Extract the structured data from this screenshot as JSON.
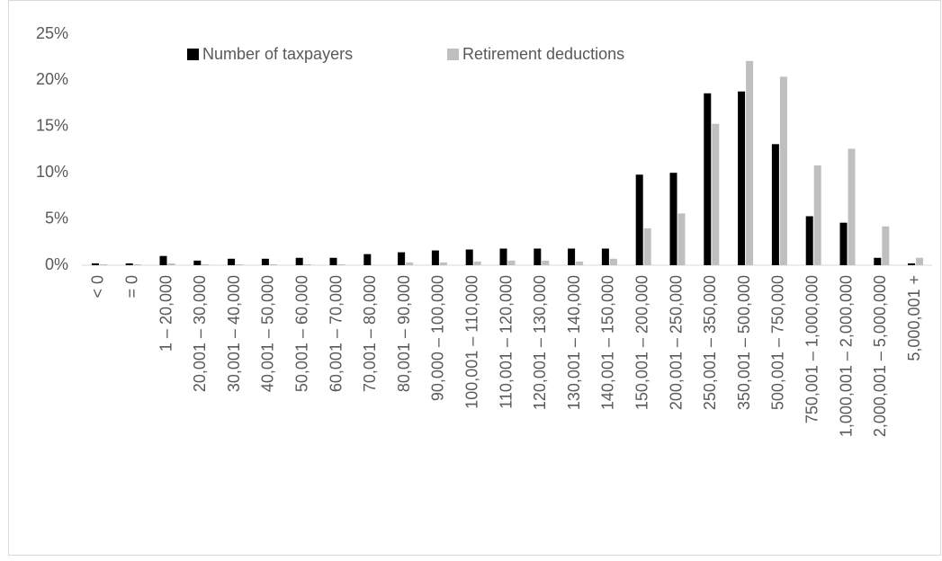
{
  "chart_data": {
    "type": "bar",
    "categories": [
      "< 0",
      "= 0",
      "1 – 20,000",
      "20,001 – 30,000",
      "30,001 – 40,000",
      "40,001 – 50,000",
      "50,001 – 60,000",
      "60,001 – 70,000",
      "70,001 – 80,000",
      "80,001 – 90,000",
      "90,000 – 100,000",
      "100,001 – 110,000",
      "110,001 – 120,000",
      "120,001 – 130,000",
      "130,001 – 140,000",
      "140,001 – 150,000",
      "150,001 – 200,000",
      "200,001 – 250,000",
      "250,001 – 350,000",
      "350,001 – 500,000",
      "500,001 – 750,000",
      "750,001 – 1,000,000",
      "1,000,001 – 2,000,000",
      "2,000,001 – 5,000,000",
      "5,000,001 +"
    ],
    "series": [
      {
        "name": "Number of taxpayers",
        "color": "#000000",
        "values": [
          0.2,
          0.2,
          1.0,
          0.5,
          0.7,
          0.7,
          0.8,
          0.8,
          1.2,
          1.4,
          1.6,
          1.7,
          1.8,
          1.8,
          1.8,
          1.8,
          9.8,
          10.0,
          18.6,
          18.8,
          13.1,
          5.3,
          4.6,
          0.8,
          0.2
        ]
      },
      {
        "name": "Retirement deductions",
        "color": "#bfbfbf",
        "values": [
          0.1,
          0.1,
          0.2,
          0.1,
          0.1,
          0.1,
          0.1,
          0.1,
          0.0,
          0.3,
          0.3,
          0.4,
          0.5,
          0.5,
          0.4,
          0.7,
          4.0,
          5.6,
          15.3,
          22.1,
          20.4,
          10.8,
          12.6,
          4.2,
          0.8
        ]
      }
    ],
    "ylim": [
      0,
      25
    ],
    "yticks": [
      {
        "value": 0,
        "label": "0%"
      },
      {
        "value": 5,
        "label": "5%"
      },
      {
        "value": 10,
        "label": "10%"
      },
      {
        "value": 15,
        "label": "15%"
      },
      {
        "value": 20,
        "label": "20%"
      },
      {
        "value": 25,
        "label": "25%"
      }
    ],
    "grid": false
  }
}
